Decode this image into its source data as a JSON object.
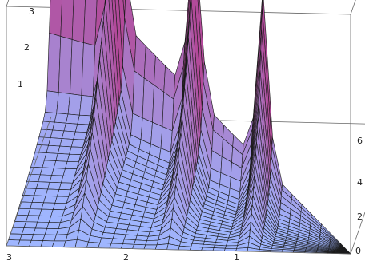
{
  "chart_data": {
    "type": "surface3d",
    "title": "",
    "xlabel": "",
    "ylabel": "",
    "zlabel": "",
    "grid": false,
    "box": true,
    "x_ticks": [
      "3",
      "2",
      "1",
      "0"
    ],
    "y_ticks": [
      "2",
      "4",
      "6"
    ],
    "z_ticks": [
      "1",
      "2",
      "3"
    ],
    "xlim": [
      0,
      3
    ],
    "ylim": [
      0,
      6
    ],
    "zlim": [
      0,
      3
    ],
    "surface_color_low": "#9fb6ff",
    "surface_color_high": "#b24a9a",
    "mesh_color": "#1a1a1a",
    "ridges": [
      {
        "x": 2.4,
        "height": 3.0
      },
      {
        "x": 1.6,
        "height": 2.6
      },
      {
        "x": 0.9,
        "height": 2.2
      }
    ]
  }
}
